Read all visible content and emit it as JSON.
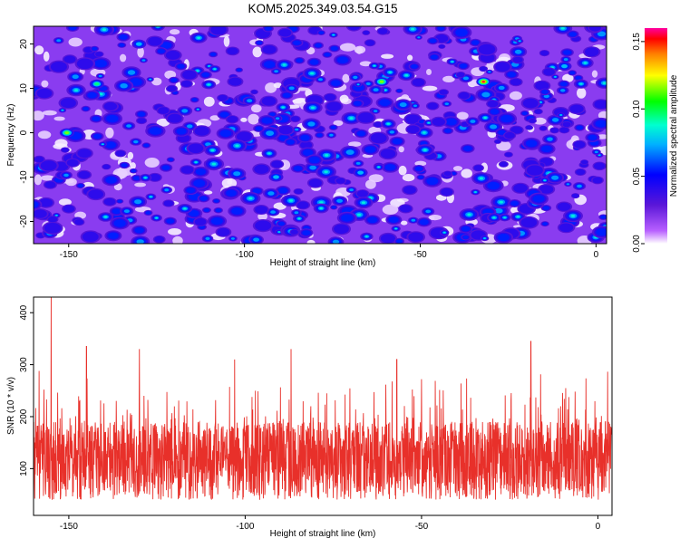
{
  "title": "KOM5.2025.349.03.54.G15",
  "chart_data": [
    {
      "type": "heatmap",
      "xlabel": "Height of straight line (km)",
      "ylabel": "Frequency (Hz)",
      "xlim": [
        -160,
        3
      ],
      "ylim": [
        -25,
        24
      ],
      "x_ticks": [
        -150,
        -100,
        -50,
        0
      ],
      "x_tick_labels": [
        "-150",
        "-100",
        "-50",
        "0"
      ],
      "y_ticks": [
        -20,
        -10,
        0,
        10,
        20
      ],
      "y_tick_labels": [
        "-20",
        "-10",
        "0",
        "10",
        "20"
      ],
      "colorbar": {
        "label": "Normalized spectral amplitude",
        "range": [
          0,
          0.16
        ],
        "ticks": [
          0,
          0.05,
          0.1,
          0.15
        ],
        "tick_labels": [
          "0.00",
          "0.05",
          "0.10",
          "0.15"
        ]
      },
      "hotspots": [
        {
          "x": -150.5,
          "y": 0,
          "value": 0.12
        },
        {
          "x": -61,
          "y": 11.5,
          "value": 0.11
        },
        {
          "x": -32,
          "y": 11.5,
          "value": 0.15
        },
        {
          "x": -142,
          "y": 11,
          "value": 0.09
        },
        {
          "x": -130,
          "y": 20,
          "value": 0.08
        },
        {
          "x": -91,
          "y": -10,
          "value": 0.08
        },
        {
          "x": -67,
          "y": -9,
          "value": 0.07
        },
        {
          "x": -9,
          "y": 15,
          "value": 0.07
        }
      ],
      "grid": false
    },
    {
      "type": "line",
      "xlabel": "Height of straight line (km)",
      "ylabel": "SNR (10 * v/v)",
      "xlim": [
        -160,
        4
      ],
      "ylim": [
        10,
        430
      ],
      "x_ticks": [
        -150,
        -100,
        -50,
        0
      ],
      "x_tick_labels": [
        "-150",
        "-100",
        "-50",
        "0"
      ],
      "y_ticks": [
        100,
        200,
        300,
        400
      ],
      "y_tick_labels": [
        "100",
        "200",
        "300",
        "400"
      ],
      "series_color": "#e8302a",
      "baseline_mean": 115,
      "peaks": [
        {
          "x": -155,
          "y": 430
        },
        {
          "x": -145,
          "y": 335
        },
        {
          "x": -130,
          "y": 330
        },
        {
          "x": -103,
          "y": 310
        },
        {
          "x": -87,
          "y": 330
        },
        {
          "x": -57,
          "y": 310
        },
        {
          "x": -19,
          "y": 345
        }
      ],
      "grid": false
    }
  ]
}
